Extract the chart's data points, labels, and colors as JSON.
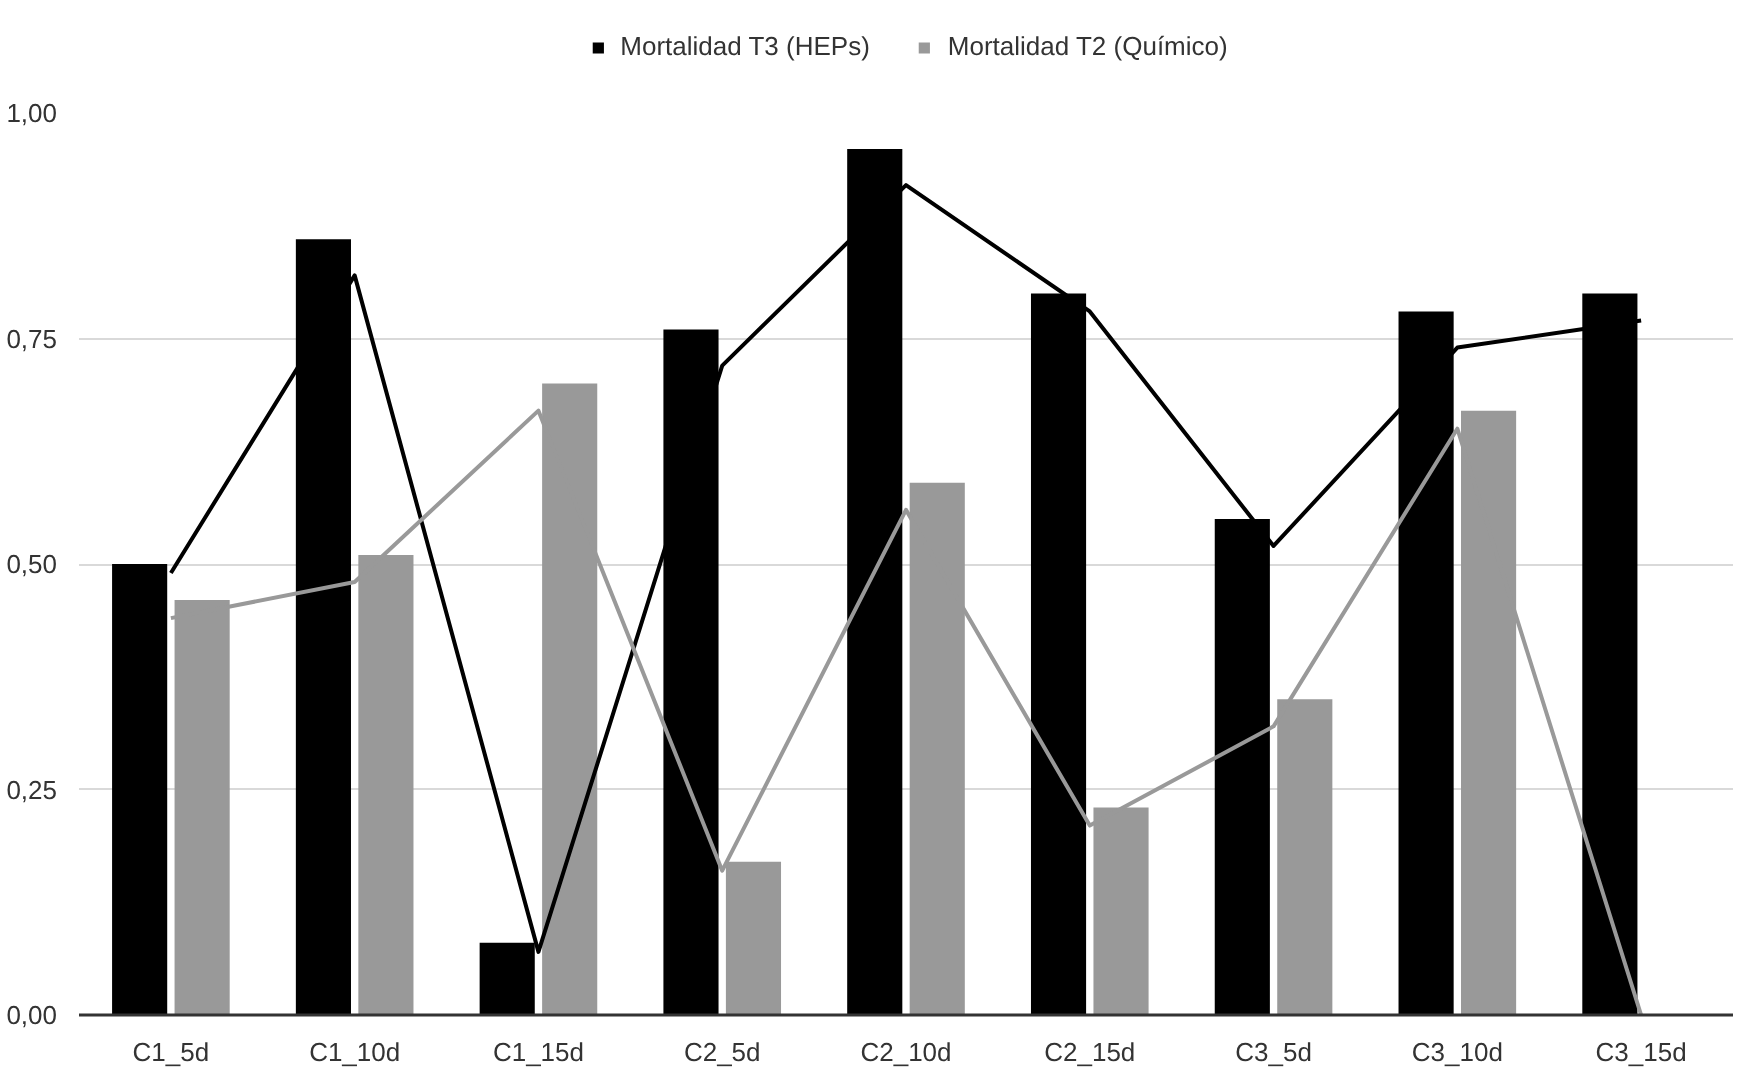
{
  "chart_data": {
    "type": "bar",
    "categories": [
      "C1_5d",
      "C1_10d",
      "C1_15d",
      "C2_5d",
      "C2_10d",
      "C2_15d",
      "C3_5d",
      "C3_10d",
      "C3_15d"
    ],
    "series": [
      {
        "name": "Mortalidad T3 (HEPs)",
        "color": "#000000",
        "values": [
          0.5,
          0.86,
          0.08,
          0.76,
          0.96,
          0.8,
          0.55,
          0.78,
          0.8
        ]
      },
      {
        "name": "Mortalidad T2 (Químico)",
        "color": "#999999",
        "values": [
          0.46,
          0.51,
          0.7,
          0.17,
          0.59,
          0.23,
          0.35,
          0.67,
          0.0
        ]
      },
      {
        "type": "line",
        "color": "#000000",
        "values": [
          0.49,
          0.82,
          0.07,
          0.72,
          0.92,
          0.78,
          0.52,
          0.74,
          0.77
        ]
      },
      {
        "type": "line",
        "color": "#999999",
        "values": [
          0.44,
          0.48,
          0.67,
          0.16,
          0.56,
          0.21,
          0.32,
          0.65,
          0.0
        ]
      }
    ],
    "ylim": [
      0,
      1
    ],
    "yticks": [
      {
        "value": 0,
        "label": "0,00"
      },
      {
        "value": 0.25,
        "label": "0,25"
      },
      {
        "value": 0.5,
        "label": "0,50"
      },
      {
        "value": 0.75,
        "label": "0,75"
      },
      {
        "value": 1,
        "label": "1,00"
      }
    ],
    "grid": "y",
    "legend": "top"
  }
}
